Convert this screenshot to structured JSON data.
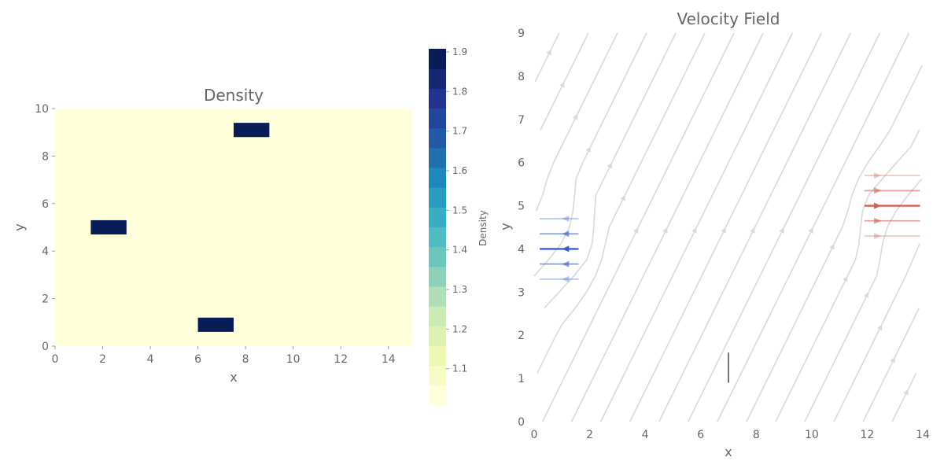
{
  "chart_data": [
    {
      "type": "heatmap",
      "title": "Density",
      "xlabel": "x",
      "ylabel": "y",
      "xlim": [
        0,
        15
      ],
      "ylim": [
        0,
        10
      ],
      "xticks": [
        "0",
        "2",
        "4",
        "6",
        "8",
        "10",
        "12",
        "14"
      ],
      "yticks": [
        "0",
        "2",
        "4",
        "6",
        "8",
        "10"
      ],
      "background_value": 1.0,
      "blocks": [
        {
          "x": [
            1.5,
            3.0
          ],
          "y": [
            4.7,
            5.3
          ],
          "value": 1.9
        },
        {
          "x": [
            6.0,
            7.5
          ],
          "y": [
            0.6,
            1.2
          ],
          "value": 1.9
        },
        {
          "x": [
            7.5,
            9.0
          ],
          "y": [
            8.8,
            9.4
          ],
          "value": 1.9
        }
      ],
      "colorbar": {
        "label": "Density",
        "range": [
          1.0,
          1.9
        ],
        "ticks": [
          "1.1",
          "1.2",
          "1.3",
          "1.4",
          "1.5",
          "1.6",
          "1.7",
          "1.8",
          "1.9"
        ],
        "colors": [
          "#ffffd9",
          "#edf8b1",
          "#c7e9b4",
          "#7fcdbb",
          "#41b6c4",
          "#1d91c0",
          "#225ea8",
          "#253494",
          "#081d58"
        ]
      }
    },
    {
      "type": "streamplot",
      "title": "Velocity Field",
      "xlabel": "x",
      "ylabel": "y",
      "xlim": [
        0,
        14
      ],
      "ylim": [
        0,
        9
      ],
      "xticks": [
        "0",
        "2",
        "4",
        "6",
        "8",
        "10",
        "12",
        "14"
      ],
      "yticks": [
        "0",
        "1",
        "2",
        "3",
        "4",
        "5",
        "6",
        "7",
        "8",
        "9"
      ],
      "background_flow": {
        "direction": "up-right",
        "color": "#d9d9d9"
      },
      "sources": [
        {
          "name": "jet-left",
          "x": 0.5,
          "y": 4.0,
          "direction": "left",
          "color": "#3a5fcd"
        },
        {
          "name": "jet-right",
          "x": 13.0,
          "y": 5.0,
          "direction": "right",
          "color": "#d6604d"
        },
        {
          "name": "jet-up",
          "x": 7.0,
          "y": 1.2,
          "direction": "up",
          "color": "#555555"
        }
      ]
    }
  ]
}
